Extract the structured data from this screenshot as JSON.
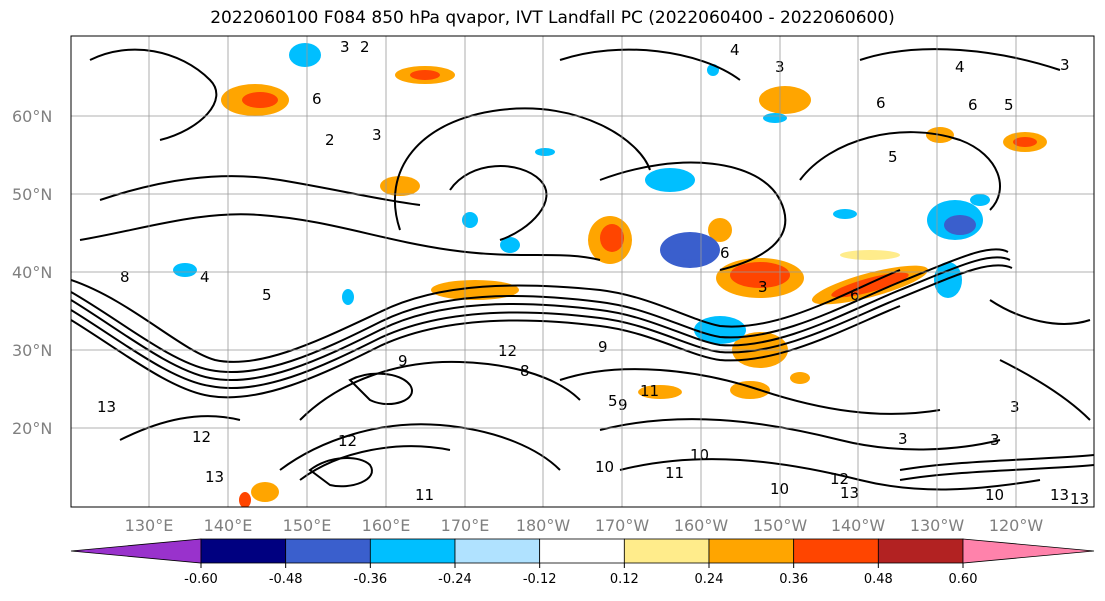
{
  "title": "2022060100 F084 850 hPa qvapor, IVT Landfall PC (2022060400 - 2022060600)",
  "lat_labels": [
    "60°N",
    "50°N",
    "40°N",
    "30°N",
    "20°N"
  ],
  "lon_labels": [
    "130°E",
    "140°E",
    "150°E",
    "160°E",
    "170°E",
    "180°W",
    "170°W",
    "160°W",
    "150°W",
    "140°W",
    "130°W",
    "120°W"
  ],
  "colorbar": {
    "tick_labels": [
      "-0.60",
      "-0.48",
      "-0.36",
      "-0.24",
      "-0.12",
      "0.12",
      "0.24",
      "0.36",
      "0.48",
      "0.60"
    ],
    "colors": [
      "#9932CC",
      "#000080",
      "#3A5FCD",
      "#00BFFF",
      "#B0E2FF",
      "#FFFFFF",
      "#FFEC8B",
      "#FFA500",
      "#FF4500",
      "#B22222",
      "#FF82AB"
    ]
  },
  "contour_labels": [
    "3",
    "2",
    "4",
    "3",
    "6",
    "5",
    "4",
    "6",
    "2",
    "3",
    "8",
    "5",
    "6",
    "5",
    "3",
    "4",
    "6",
    "3",
    "6",
    "5",
    "3",
    "8",
    "10",
    "9",
    "12",
    "9",
    "11",
    "9",
    "10",
    "11",
    "10",
    "12",
    "13",
    "12",
    "13",
    "11",
    "12",
    "13",
    "3",
    "3",
    "13",
    "10",
    "13"
  ],
  "legend": {
    "positive_color": "#FF4500",
    "negative_color": "#3A5FCD",
    "contour_color": "#000000"
  }
}
